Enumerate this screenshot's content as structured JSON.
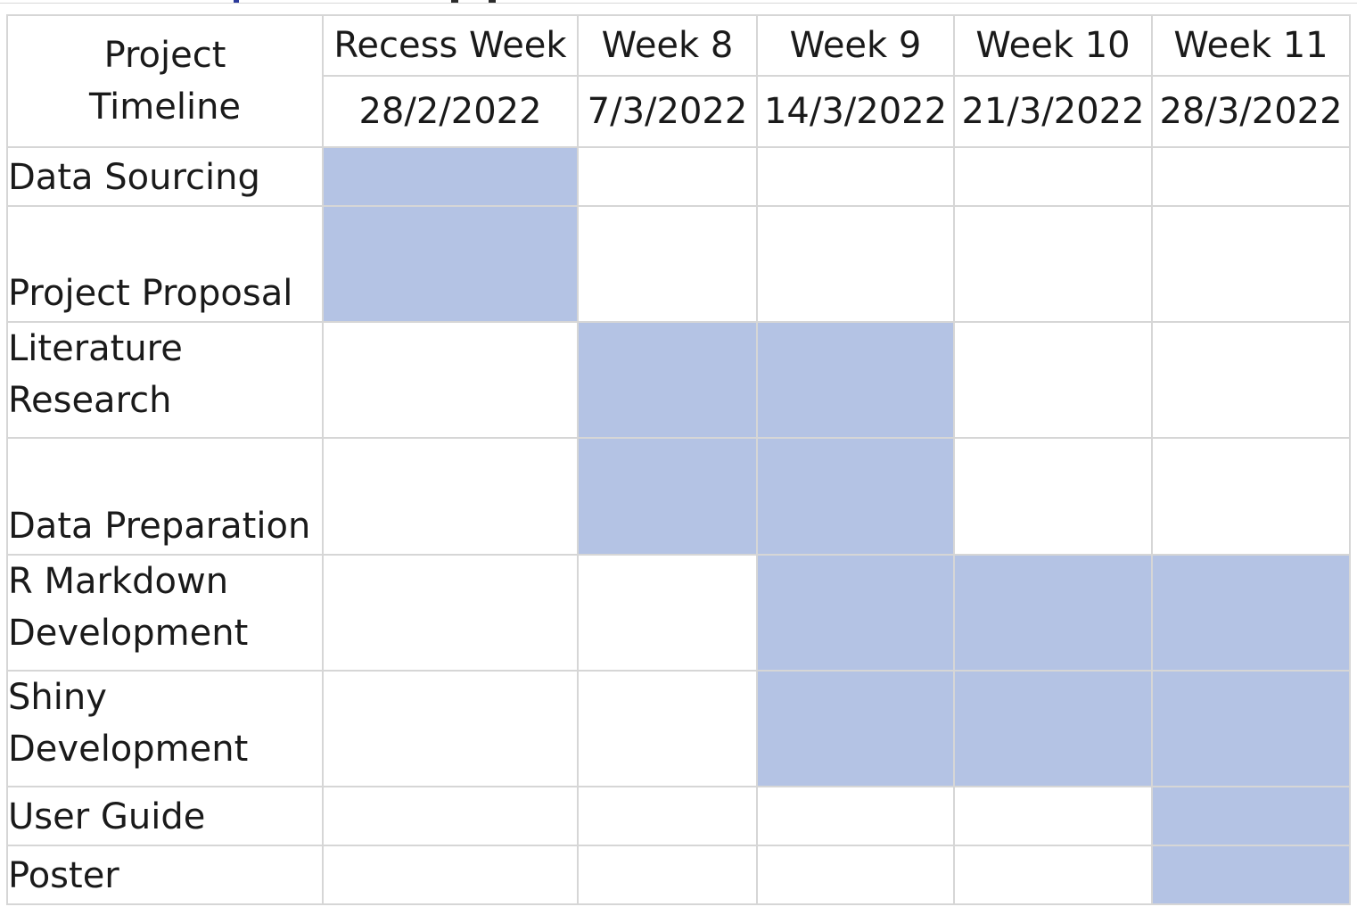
{
  "table": {
    "corner": {
      "line1": "Project",
      "line2": "Timeline"
    },
    "weeks": [
      "Recess Week",
      "Week 8",
      "Week 9",
      "Week 10",
      "Week 11"
    ],
    "dates": [
      "28/2/2022",
      "7/3/2022",
      "14/3/2022",
      "21/3/2022",
      "28/3/2022"
    ],
    "tasks": [
      {
        "line1": "Data Sourcing",
        "line2": "",
        "active": [
          true,
          false,
          false,
          false,
          false
        ]
      },
      {
        "line1": "Project Proposal",
        "line2": "",
        "active": [
          true,
          false,
          false,
          false,
          false
        ]
      },
      {
        "line1": "Literature",
        "line2": "Research",
        "active": [
          false,
          true,
          true,
          false,
          false
        ]
      },
      {
        "line1": "Data Preparation",
        "line2": "",
        "active": [
          false,
          true,
          true,
          false,
          false
        ]
      },
      {
        "line1": "R Markdown",
        "line2": "Development",
        "active": [
          false,
          false,
          true,
          true,
          true
        ]
      },
      {
        "line1": "Shiny",
        "line2": "Development",
        "active": [
          false,
          false,
          true,
          true,
          true
        ]
      },
      {
        "line1": "User Guide",
        "line2": "",
        "active": [
          false,
          false,
          false,
          false,
          true
        ]
      },
      {
        "line1": "Poster",
        "line2": "",
        "active": [
          false,
          false,
          false,
          false,
          true
        ]
      }
    ]
  },
  "colors": {
    "active_fill": "#b4c3e4",
    "grid": "#d6d6d6"
  }
}
